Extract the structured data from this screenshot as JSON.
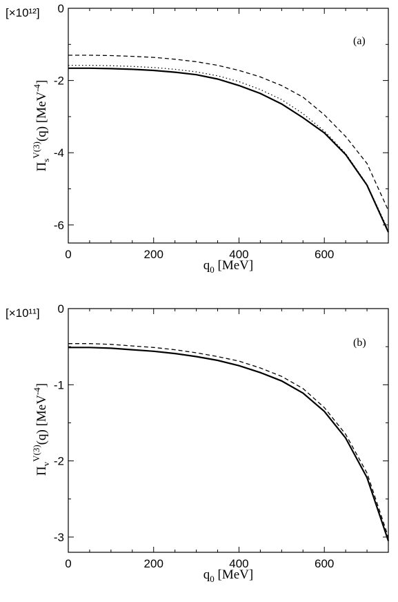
{
  "chart_data": [
    {
      "type": "line",
      "panel_label": "(a)",
      "multiplier": "[×10¹²]",
      "ylabel": {
        "base": "Π",
        "sub": "s",
        "sup": "V(3)",
        "rest": "(q) [MeV",
        "unit_sup": "-4",
        "close": "]"
      },
      "xlabel": {
        "base": "q",
        "sub": "0",
        "rest": " [MeV]"
      },
      "xlim": [
        0,
        750
      ],
      "ylim": [
        -6.5,
        0
      ],
      "xticks": [
        0,
        200,
        400,
        600
      ],
      "yticks": [
        0,
        -2,
        -4,
        -6
      ],
      "grid": false,
      "x": [
        0,
        50,
        100,
        150,
        200,
        250,
        300,
        350,
        400,
        450,
        500,
        550,
        600,
        650,
        700,
        750
      ],
      "series": [
        {
          "style": "solid",
          "values": [
            -1.66,
            -1.66,
            -1.67,
            -1.69,
            -1.72,
            -1.77,
            -1.84,
            -1.96,
            -2.14,
            -2.36,
            -2.65,
            -3.03,
            -3.45,
            -4.05,
            -4.9,
            -6.2
          ]
        },
        {
          "style": "dotted",
          "values": [
            -1.58,
            -1.58,
            -1.59,
            -1.61,
            -1.64,
            -1.69,
            -1.76,
            -1.87,
            -2.03,
            -2.25,
            -2.53,
            -2.92,
            -3.4,
            -4.02,
            -4.88,
            -6.15
          ]
        },
        {
          "style": "dashed",
          "values": [
            -1.3,
            -1.3,
            -1.31,
            -1.33,
            -1.36,
            -1.41,
            -1.48,
            -1.58,
            -1.72,
            -1.9,
            -2.14,
            -2.46,
            -2.95,
            -3.55,
            -4.3,
            -5.6
          ]
        }
      ]
    },
    {
      "type": "line",
      "panel_label": "(b)",
      "multiplier": "[×10¹¹]",
      "ylabel": {
        "base": "Π",
        "sub": "v",
        "sup": "V(3)",
        "rest": "(q) [MeV",
        "unit_sup": "-4",
        "close": "]"
      },
      "xlabel": {
        "base": "q",
        "sub": "0",
        "rest": " [MeV]"
      },
      "xlim": [
        0,
        750
      ],
      "ylim": [
        -3.2,
        0
      ],
      "xticks": [
        0,
        200,
        400,
        600
      ],
      "yticks": [
        0,
        -1,
        -2,
        -3
      ],
      "grid": false,
      "x": [
        0,
        50,
        100,
        150,
        200,
        250,
        300,
        350,
        400,
        450,
        500,
        550,
        600,
        650,
        700,
        750
      ],
      "series": [
        {
          "style": "solid",
          "values": [
            -0.51,
            -0.51,
            -0.52,
            -0.54,
            -0.56,
            -0.59,
            -0.63,
            -0.68,
            -0.75,
            -0.84,
            -0.95,
            -1.11,
            -1.35,
            -1.7,
            -2.22,
            -3.05
          ]
        },
        {
          "style": "dashed",
          "values": [
            -0.46,
            -0.46,
            -0.47,
            -0.49,
            -0.51,
            -0.54,
            -0.58,
            -0.63,
            -0.69,
            -0.78,
            -0.89,
            -1.05,
            -1.3,
            -1.65,
            -2.16,
            -3.0
          ]
        }
      ]
    }
  ]
}
